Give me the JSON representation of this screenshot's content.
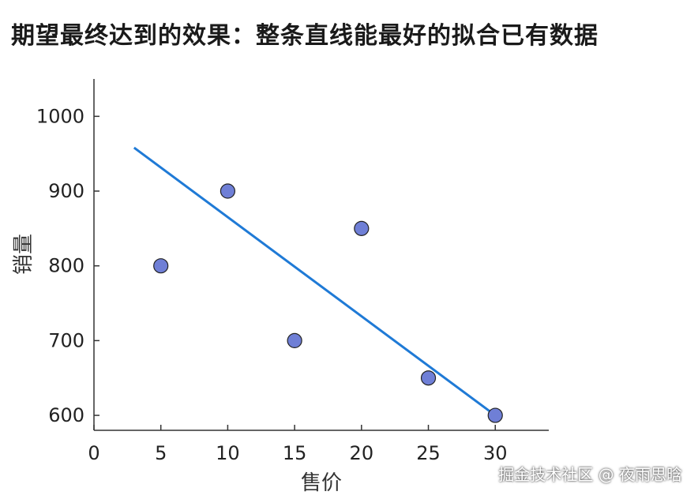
{
  "title": "期望最终达到的效果：整条直线能最好的拟合已有数据",
  "watermark": "掘金技术社区 @ 夜雨思晗",
  "chart_data": {
    "type": "scatter",
    "xlabel": "售价",
    "ylabel": "销量",
    "xlim": [
      0,
      34
    ],
    "ylim": [
      580,
      1050
    ],
    "xticks": [
      0,
      5,
      10,
      15,
      20,
      25,
      30
    ],
    "yticks": [
      600,
      700,
      800,
      900,
      1000
    ],
    "grid": false,
    "points": [
      {
        "x": 5,
        "y": 800
      },
      {
        "x": 10,
        "y": 900
      },
      {
        "x": 15,
        "y": 700
      },
      {
        "x": 20,
        "y": 850
      },
      {
        "x": 25,
        "y": 650
      },
      {
        "x": 30,
        "y": 600
      }
    ],
    "fit_line": {
      "x": [
        3,
        30
      ],
      "y": [
        958,
        600
      ]
    },
    "colors": {
      "point_fill": "#6f7fd6",
      "point_stroke": "#222222",
      "line": "#1f7ad6",
      "axis": "#333333"
    }
  }
}
